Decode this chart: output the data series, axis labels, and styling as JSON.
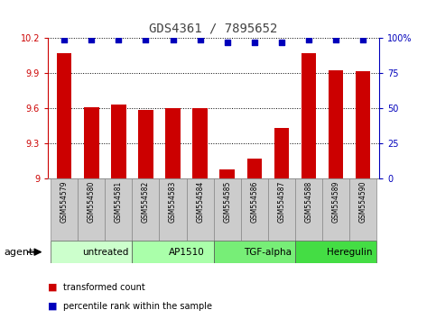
{
  "title": "GDS4361 / 7895652",
  "samples": [
    "GSM554579",
    "GSM554580",
    "GSM554581",
    "GSM554582",
    "GSM554583",
    "GSM554584",
    "GSM554585",
    "GSM554586",
    "GSM554587",
    "GSM554588",
    "GSM554589",
    "GSM554590"
  ],
  "red_values": [
    10.07,
    9.61,
    9.63,
    9.59,
    9.6,
    9.6,
    9.08,
    9.17,
    9.43,
    10.07,
    9.93,
    9.92
  ],
  "blue_values": [
    99,
    99,
    99,
    99,
    99,
    99,
    97,
    97,
    97,
    99,
    99,
    99
  ],
  "ylim_left": [
    9.0,
    10.2
  ],
  "ylim_right": [
    0,
    100
  ],
  "yticks_left": [
    9.0,
    9.3,
    9.6,
    9.9,
    10.2
  ],
  "ytick_labels_left": [
    "9",
    "9.3",
    "9.6",
    "9.9",
    "10.2"
  ],
  "yticks_right": [
    0,
    25,
    50,
    75,
    100
  ],
  "ytick_labels_right": [
    "0",
    "25",
    "50",
    "75",
    "100%"
  ],
  "groups": [
    {
      "label": "untreated",
      "start": 0,
      "end": 3,
      "color": "#ccffcc"
    },
    {
      "label": "AP1510",
      "start": 3,
      "end": 6,
      "color": "#aaffaa"
    },
    {
      "label": "TGF-alpha",
      "start": 6,
      "end": 9,
      "color": "#77ee77"
    },
    {
      "label": "Heregulin",
      "start": 9,
      "end": 12,
      "color": "#44dd44"
    }
  ],
  "bar_color": "#cc0000",
  "dot_color": "#0000bb",
  "background_color": "#ffffff",
  "plot_bg_color": "#ffffff",
  "grid_color": "#000000",
  "title_color": "#444444",
  "left_tick_color": "#cc0000",
  "right_tick_color": "#0000bb",
  "sample_box_color": "#cccccc",
  "sample_box_edge": "#888888"
}
